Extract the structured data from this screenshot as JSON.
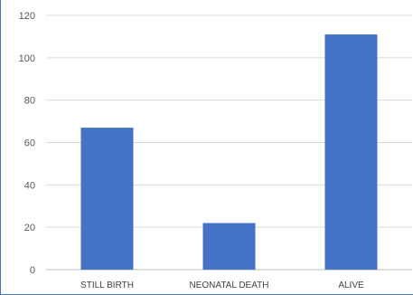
{
  "chart_data": {
    "type": "bar",
    "categories": [
      "STILL BIRTH",
      "NEONATAL DEATH",
      "ALIVE"
    ],
    "values": [
      67,
      22,
      111
    ],
    "ylim": [
      0,
      120
    ],
    "yticks": [
      0,
      20,
      40,
      60,
      80,
      100,
      120
    ],
    "grid": true,
    "legend": "none",
    "bar_color": "#4472c4",
    "grid_color": "#d9d9d9",
    "axis_color": "#bfbfbf"
  }
}
